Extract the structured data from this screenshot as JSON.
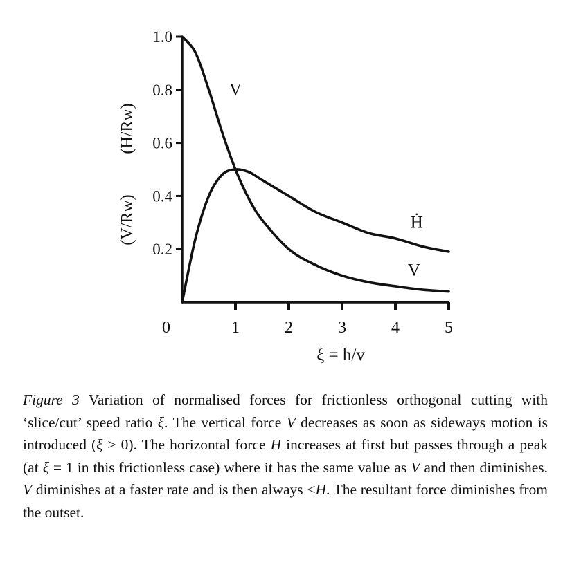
{
  "chart_data": {
    "type": "line",
    "xlabel": "ξ = h/v",
    "ylabel": [
      "(V/Rw)",
      "(H/Rw)"
    ],
    "xlim": [
      0,
      5
    ],
    "ylim": [
      0,
      1.0
    ],
    "grid": false,
    "x_ticks": [
      "0",
      "1",
      "2",
      "3",
      "4",
      "5"
    ],
    "y_ticks": [
      "0.2",
      "0.4",
      "0.6",
      "0.8",
      "1.0"
    ],
    "x": [
      0,
      0.25,
      0.5,
      0.75,
      1,
      1.25,
      1.5,
      2,
      2.5,
      3,
      3.5,
      4,
      4.5,
      5
    ],
    "series": [
      {
        "name": "V",
        "values": [
          1.0,
          0.94,
          0.8,
          0.64,
          0.5,
          0.39,
          0.31,
          0.2,
          0.14,
          0.1,
          0.075,
          0.06,
          0.047,
          0.04
        ]
      },
      {
        "name": "H",
        "values": [
          0.0,
          0.24,
          0.4,
          0.48,
          0.5,
          0.49,
          0.46,
          0.4,
          0.34,
          0.3,
          0.26,
          0.24,
          0.21,
          0.19
        ]
      }
    ],
    "annotations": [
      {
        "text": "V",
        "x": 1.0,
        "y": 0.78
      },
      {
        "text": "Ḣ",
        "x": 4.4,
        "y": 0.28
      },
      {
        "text": "V",
        "x": 4.35,
        "y": 0.1
      }
    ]
  },
  "caption": [
    {
      "text": "Figure 3",
      "italic": true
    },
    {
      "text": " Variation of normalised forces for frictionless orthogonal cut­ting with ‘slice/cut’ speed ratio ",
      "italic": false
    },
    {
      "text": "ξ",
      "italic": true
    },
    {
      "text": ". The vertical force ",
      "italic": false
    },
    {
      "text": "V",
      "italic": true
    },
    {
      "text": " decreases as soon as sideways motion is introduced (",
      "italic": false
    },
    {
      "text": "ξ",
      "italic": true
    },
    {
      "text": " > 0). The horizontal force ",
      "italic": false
    },
    {
      "text": "H",
      "italic": true
    },
    {
      "text": " increases at first but passes through a peak (at ",
      "italic": false
    },
    {
      "text": "ξ",
      "italic": true
    },
    {
      "text": " = 1 in this frictionless case) where it has the same value as ",
      "italic": false
    },
    {
      "text": "V",
      "italic": true
    },
    {
      "text": " and then diminishes. ",
      "italic": false
    },
    {
      "text": "V",
      "italic": true
    },
    {
      "text": " diminishes at a faster rate and is then always <",
      "italic": false
    },
    {
      "text": "H",
      "italic": true
    },
    {
      "text": ". The resultant force diminishes from the outset.",
      "italic": false
    }
  ]
}
